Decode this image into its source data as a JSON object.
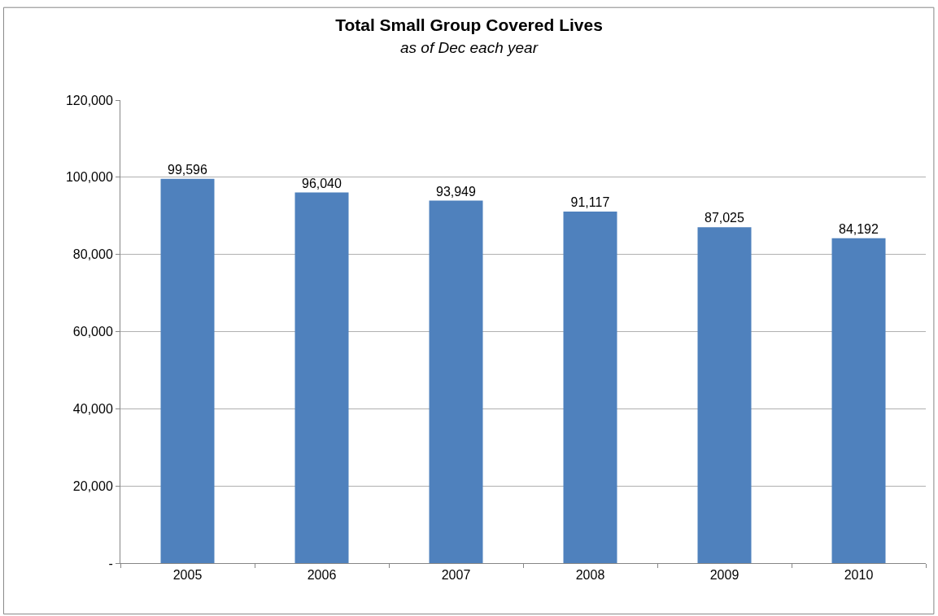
{
  "chart_data": {
    "type": "bar",
    "title": "Total Small Group Covered Lives",
    "subtitle": "as of Dec each year",
    "categories": [
      "2005",
      "2006",
      "2007",
      "2008",
      "2009",
      "2010"
    ],
    "values": [
      99596,
      96040,
      93949,
      91117,
      87025,
      84192
    ],
    "color": "#4f81bd",
    "ylim": [
      0,
      120000
    ],
    "yticks": [
      {
        "value": 0,
        "label": "-"
      },
      {
        "value": 20000,
        "label": "20,000"
      },
      {
        "value": 40000,
        "label": "40,000"
      },
      {
        "value": 60000,
        "label": "60,000"
      },
      {
        "value": 80000,
        "label": "80,000"
      },
      {
        "value": 100000,
        "label": "100,000"
      },
      {
        "value": 120000,
        "label": "120,000"
      }
    ],
    "value_labels": [
      "99,596",
      "96,040",
      "93,949",
      "91,117",
      "87,025",
      "84,192"
    ],
    "grid": "y"
  }
}
